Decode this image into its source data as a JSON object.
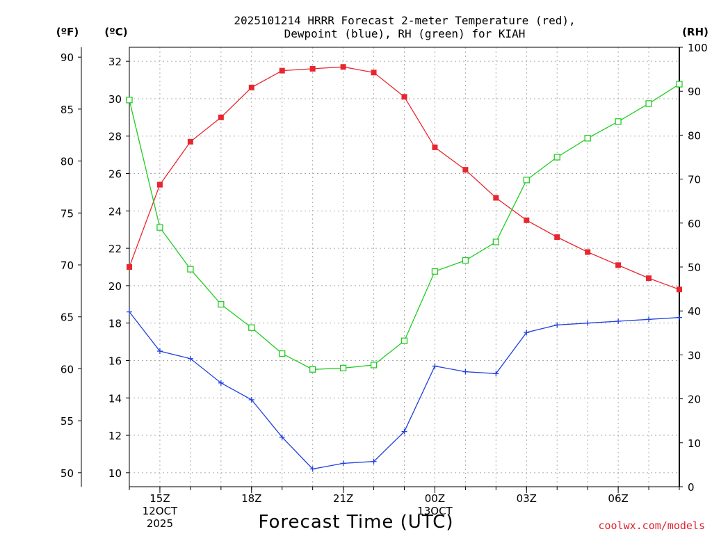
{
  "chart_data": {
    "type": "line",
    "title_line1": "2025101214 HRRR Forecast 2-meter Temperature (red),",
    "title_line2": "Dewpoint (blue), RH (green) for KIAH",
    "xlabel": "Forecast Time (UTC)",
    "credit": "coolwx.com/models",
    "units": {
      "fahrenheit": "(ºF)",
      "celsius": "(ºC)",
      "rh": "(RH)"
    },
    "hours": [
      "14Z",
      "15Z",
      "16Z",
      "17Z",
      "18Z",
      "19Z",
      "20Z",
      "21Z",
      "22Z",
      "23Z",
      "00Z",
      "01Z",
      "02Z",
      "03Z",
      "04Z",
      "05Z",
      "06Z",
      "07Z",
      "08Z"
    ],
    "x_tick_labels": [
      {
        "hour": "15Z",
        "lines": [
          "15Z",
          "12OCT",
          "2025"
        ]
      },
      {
        "hour": "18Z",
        "lines": [
          "18Z"
        ]
      },
      {
        "hour": "21Z",
        "lines": [
          "21Z"
        ]
      },
      {
        "hour": "00Z",
        "lines": [
          "00Z",
          "13OCT"
        ]
      },
      {
        "hour": "03Z",
        "lines": [
          "03Z"
        ]
      },
      {
        "hour": "06Z",
        "lines": [
          "06Z"
        ]
      }
    ],
    "axes": {
      "celsius": {
        "ylim": [
          9.25,
          32.75
        ],
        "ticks": [
          10,
          12,
          14,
          16,
          18,
          20,
          22,
          24,
          26,
          28,
          30,
          32
        ]
      },
      "fahrenheit": {
        "ylim": [
          48.65,
          90.95
        ],
        "ticks": [
          50,
          55,
          60,
          65,
          70,
          75,
          80,
          85,
          90
        ]
      },
      "rh": {
        "ylim": [
          0,
          100
        ],
        "ticks": [
          0,
          10,
          20,
          30,
          40,
          50,
          60,
          70,
          80,
          90,
          100
        ]
      }
    },
    "grid": true,
    "series": [
      {
        "axis": "celsius",
        "color": "#e8262f",
        "marker": "filled-square",
        "values": [
          21.0,
          25.4,
          27.7,
          29.0,
          30.6,
          31.5,
          31.6,
          31.7,
          31.4,
          30.1,
          27.4,
          26.2,
          24.7,
          23.5,
          22.6,
          21.8,
          21.1,
          20.4,
          19.8
        ]
      },
      {
        "axis": "celsius",
        "color": "#2040e0",
        "marker": "plus",
        "values": [
          18.6,
          16.5,
          16.1,
          14.8,
          13.9,
          11.9,
          10.2,
          10.5,
          10.6,
          12.2,
          15.7,
          15.4,
          15.3,
          17.5,
          17.9,
          18.0,
          18.1,
          18.2,
          18.3
        ]
      },
      {
        "axis": "rh",
        "color": "#22cc22",
        "marker": "open-square",
        "values": [
          88,
          59,
          49.5,
          41.5,
          36.2,
          30.3,
          26.7,
          27,
          27.7,
          33.2,
          49,
          51.5,
          55.7,
          69.8,
          75,
          79.3,
          83.1,
          87.2,
          91.6
        ]
      }
    ]
  }
}
